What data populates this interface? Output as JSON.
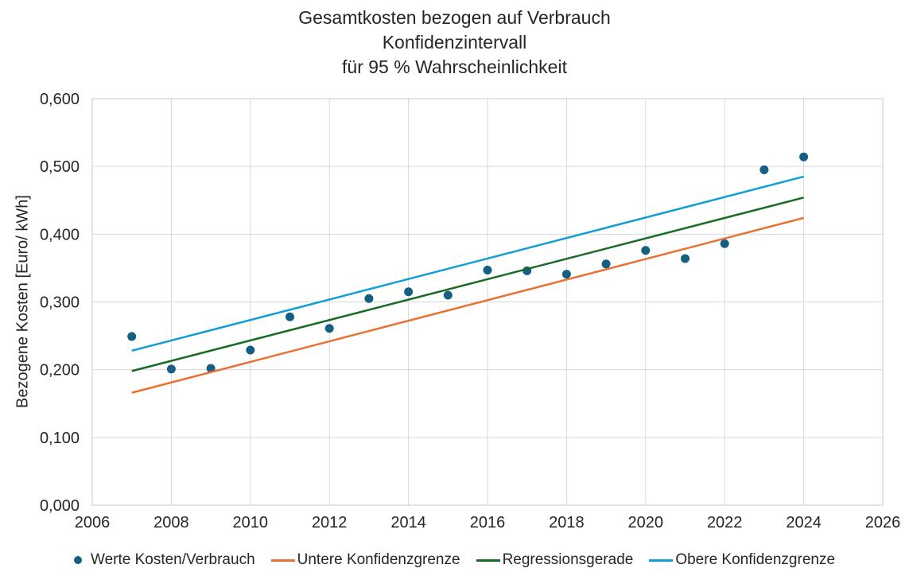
{
  "title": {
    "lines": [
      "Gesamtkosten bezogen auf Verbrauch",
      "Konfidenzintervall",
      "für 95 % Wahrscheinlichkeit"
    ]
  },
  "chart_data": {
    "type": "scatter",
    "title": "Gesamtkosten bezogen auf Verbrauch Konfidenzintervall für 95 % Wahrscheinlichkeit",
    "grid": true,
    "legend_position": "bottom",
    "x_axis": {
      "min": 2006,
      "max": 2026,
      "ticks": [
        {
          "value": 2006,
          "label": "2006"
        },
        {
          "value": 2008,
          "label": "2008"
        },
        {
          "value": 2010,
          "label": "2010"
        },
        {
          "value": 2012,
          "label": "2012"
        },
        {
          "value": 2014,
          "label": "2014"
        },
        {
          "value": 2016,
          "label": "2016"
        },
        {
          "value": 2018,
          "label": "2018"
        },
        {
          "value": 2020,
          "label": "2020"
        },
        {
          "value": 2022,
          "label": "2022"
        },
        {
          "value": 2024,
          "label": "2024"
        },
        {
          "value": 2026,
          "label": "2026"
        }
      ]
    },
    "y_axis": {
      "label": "Bezogene Kosten [Euro/ kWh]",
      "min": 0,
      "max": 0.6,
      "ticks": [
        {
          "value": 0.0,
          "label": "0,000"
        },
        {
          "value": 0.1,
          "label": "0,100"
        },
        {
          "value": 0.2,
          "label": "0,200"
        },
        {
          "value": 0.3,
          "label": "0,300"
        },
        {
          "value": 0.4,
          "label": "0,400"
        },
        {
          "value": 0.5,
          "label": "0,500"
        },
        {
          "value": 0.6,
          "label": "0,600"
        }
      ]
    },
    "series": [
      {
        "name": "Werte Kosten/Verbrauch",
        "type": "scatter",
        "color": "#156082",
        "x": [
          2007,
          2008,
          2009,
          2010,
          2011,
          2012,
          2013,
          2014,
          2015,
          2016,
          2017,
          2018,
          2019,
          2020,
          2021,
          2022,
          2023,
          2024
        ],
        "y": [
          0.249,
          0.201,
          0.202,
          0.229,
          0.278,
          0.261,
          0.305,
          0.315,
          0.31,
          0.347,
          0.346,
          0.341,
          0.356,
          0.376,
          0.364,
          0.386,
          0.495,
          0.514
        ]
      },
      {
        "name": "Untere Konfidenzgrenze",
        "type": "line",
        "color": "#E97132",
        "x": [
          2007,
          2024
        ],
        "y": [
          0.166,
          0.424
        ]
      },
      {
        "name": "Regressionsgerade",
        "type": "line",
        "color": "#196B24",
        "x": [
          2007,
          2024
        ],
        "y": [
          0.198,
          0.454
        ]
      },
      {
        "name": "Obere Konfidenzgrenze",
        "type": "line",
        "color": "#0F9ED5",
        "x": [
          2007,
          2024
        ],
        "y": [
          0.228,
          0.485
        ]
      }
    ],
    "style": {
      "grid_color": "#D9D9D9",
      "border_color": "#C9C9C9",
      "text_color": "#262626",
      "tick_font_size": 20,
      "point_radius": 5.5,
      "line_width": 2.5
    }
  }
}
